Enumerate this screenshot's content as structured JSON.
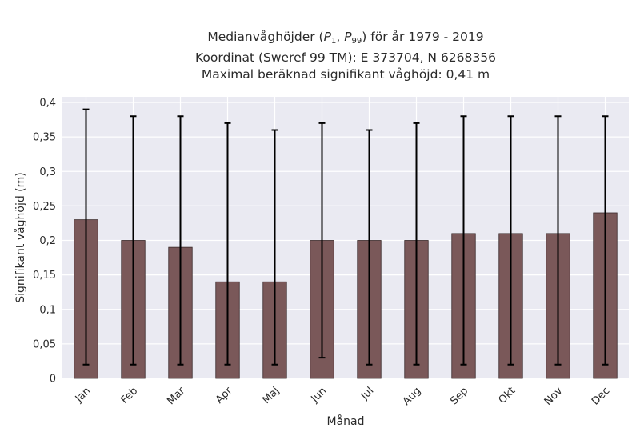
{
  "chart_data": {
    "type": "bar",
    "title_prefix": "Medianvåghöjder (",
    "title_p1": "P",
    "title_p1_sub": "1",
    "title_sep": ", ",
    "title_p99": "P",
    "title_p99_sub": "99",
    "title_suffix": ") för år 1979 - 2019",
    "subtitle_line2": "Koordinat (Sweref 99 TM): E 373704, N 6268356",
    "subtitle_line3": "Maximal beräknad signifikant våghöjd: 0,41 m",
    "xlabel": "Månad",
    "ylabel": "Signifikant våghöjd (m)",
    "ylim": [
      0,
      0.4
    ],
    "yticks": [
      {
        "value": 0,
        "label": "0"
      },
      {
        "value": 0.05,
        "label": "0,05"
      },
      {
        "value": 0.1,
        "label": "0,1"
      },
      {
        "value": 0.15,
        "label": "0,15"
      },
      {
        "value": 0.2,
        "label": "0,2"
      },
      {
        "value": 0.25,
        "label": "0,25"
      },
      {
        "value": 0.3,
        "label": "0,3"
      },
      {
        "value": 0.35,
        "label": "0,35"
      },
      {
        "value": 0.4,
        "label": "0,4"
      }
    ],
    "categories": [
      "Jan",
      "Feb",
      "Mar",
      "Apr",
      "Maj",
      "Jun",
      "Jul",
      "Aug",
      "Sep",
      "Okt",
      "Nov",
      "Dec"
    ],
    "values": [
      0.23,
      0.2,
      0.19,
      0.14,
      0.14,
      0.2,
      0.2,
      0.2,
      0.21,
      0.21,
      0.21,
      0.24
    ],
    "p1": [
      0.02,
      0.02,
      0.02,
      0.02,
      0.02,
      0.03,
      0.02,
      0.02,
      0.02,
      0.02,
      0.02,
      0.02
    ],
    "p99": [
      0.39,
      0.38,
      0.38,
      0.37,
      0.36,
      0.37,
      0.36,
      0.37,
      0.38,
      0.38,
      0.38,
      0.38
    ],
    "grid": true,
    "colors": {
      "bar": "#7a5859",
      "bar_edge": "#3a2a2a",
      "error_bar": "#000000",
      "plot_bg": "#eaeaf2",
      "grid": "#ffffff"
    }
  }
}
